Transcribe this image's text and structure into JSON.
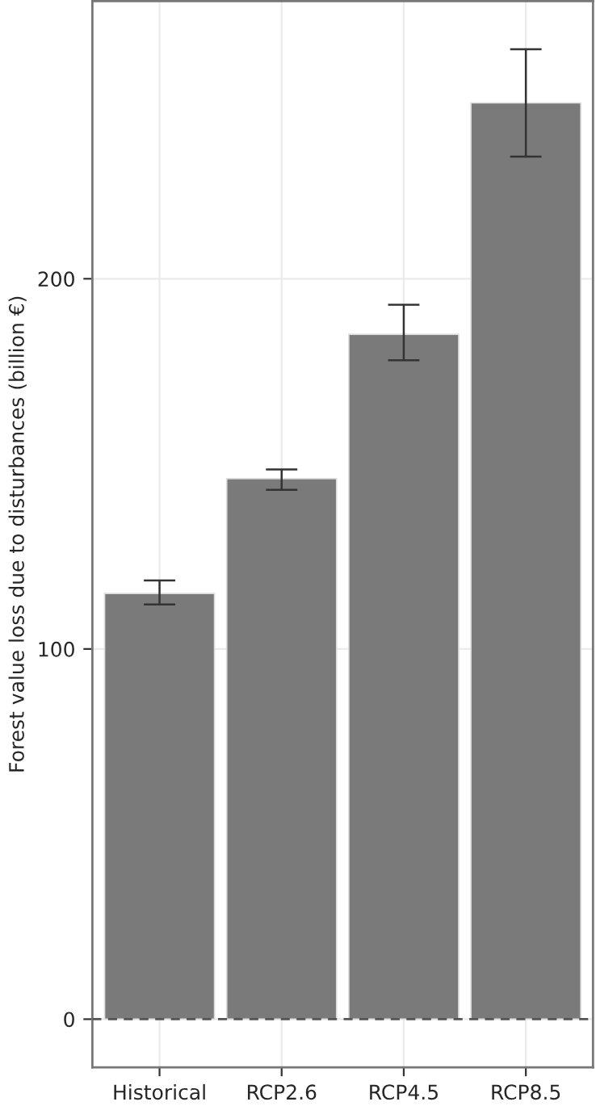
{
  "chart_data": {
    "type": "bar",
    "ylabel": "Forest value loss due to disturbances (billion €)",
    "categories": [
      "Historical",
      "RCP2.6",
      "RCP4.5",
      "RCP8.5"
    ],
    "values": [
      115,
      146,
      185,
      247.5
    ],
    "errors": [
      [
        112,
        118.5
      ],
      [
        143,
        148.5
      ],
      [
        178,
        193
      ],
      [
        233,
        262
      ]
    ],
    "color": "#7a7a7a",
    "ylim": [
      -13,
      275
    ],
    "yticks": [
      0,
      100,
      200
    ],
    "grid": true,
    "ref_lines": [
      {
        "axis": "y",
        "value": 0,
        "label": null,
        "color": "#555555",
        "line_style": "dashed"
      }
    ]
  }
}
